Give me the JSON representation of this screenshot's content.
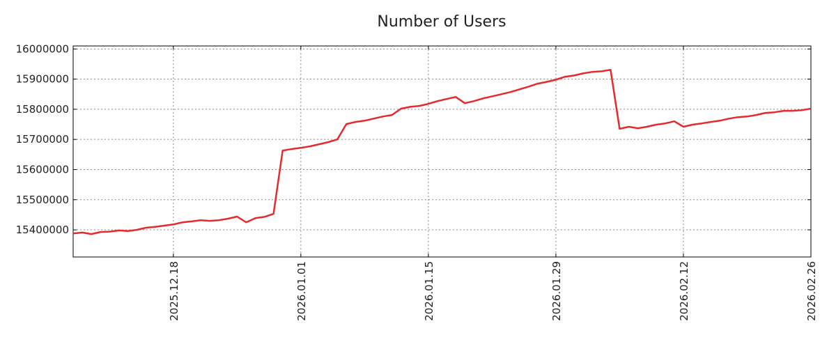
{
  "chart_data": {
    "type": "line",
    "title": "Number of Users",
    "xlabel": "",
    "ylabel": "",
    "start_date": "2025-12-07",
    "ylim": [
      15310000,
      16010000
    ],
    "xlim_days": [
      0,
      81
    ],
    "grid": true,
    "yticks": [
      15400000,
      15500000,
      15600000,
      15700000,
      15800000,
      15900000,
      16000000
    ],
    "ytick_labels": [
      "15400000",
      "15500000",
      "15600000",
      "15700000",
      "15800000",
      "15900000",
      "16000000"
    ],
    "xticks_days": [
      11,
      25,
      39,
      53,
      67,
      81
    ],
    "xtick_labels": [
      "2025.12.18",
      "2026.01.01",
      "2026.01.15",
      "2026.01.29",
      "2026.02.12",
      "2026.02.26"
    ],
    "series": [
      {
        "name": "Number of Users",
        "color": "#e8292b",
        "values": [
          15388000,
          15391000,
          15386000,
          15393000,
          15394000,
          15398000,
          15396000,
          15400000,
          15407000,
          15410000,
          15414000,
          15418000,
          15425000,
          15428000,
          15432000,
          15430000,
          15432000,
          15437000,
          15444000,
          15425000,
          15439000,
          15443000,
          15453000,
          15663000,
          15668000,
          15672000,
          15677000,
          15684000,
          15691000,
          15700000,
          15751000,
          15758000,
          15762000,
          15769000,
          15776000,
          15781000,
          15802000,
          15808000,
          15811000,
          15818000,
          15827000,
          15834000,
          15841000,
          15820000,
          15827000,
          15836000,
          15843000,
          15850000,
          15857000,
          15866000,
          15875000,
          15885000,
          15891000,
          15898000,
          15908000,
          15912000,
          15919000,
          15924000,
          15926000,
          15931000,
          15735000,
          15742000,
          15737000,
          15742000,
          15749000,
          15753000,
          15760000,
          15742000,
          15749000,
          15753000,
          15758000,
          15762000,
          15769000,
          15774000,
          15776000,
          15781000,
          15788000,
          15790000,
          15795000,
          15795000,
          15797000,
          15802000
        ]
      }
    ]
  }
}
